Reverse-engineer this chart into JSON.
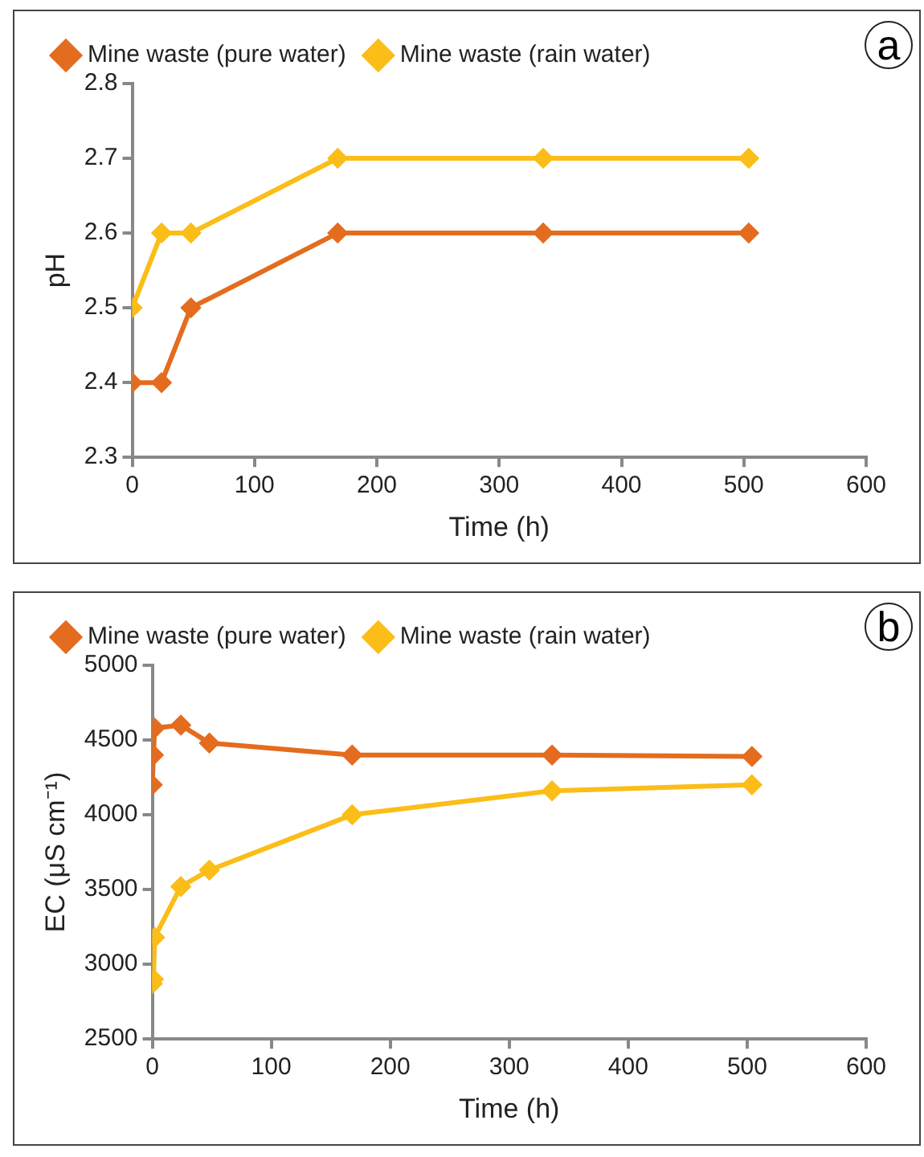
{
  "chart_data": [
    {
      "type": "line",
      "xlabel": "Time (h)",
      "ylabel": "pH",
      "x": [
        0,
        24,
        48,
        168,
        336,
        504
      ],
      "xlim": [
        0,
        600
      ],
      "xticks": [
        0,
        100,
        200,
        300,
        400,
        500,
        600
      ],
      "ylim": [
        2.3,
        2.8
      ],
      "yticks": [
        2.3,
        2.4,
        2.5,
        2.6,
        2.7,
        2.8
      ],
      "grid": false,
      "legend": "top",
      "marker": "diamond",
      "annotations": [
        "a"
      ],
      "series": [
        {
          "name": "Mine waste (pure water)",
          "color": "#e46c1e",
          "values": [
            2.4,
            2.4,
            2.5,
            2.6,
            2.6,
            2.6
          ]
        },
        {
          "name": "Mine waste (rain water)",
          "color": "#fbbd18",
          "values": [
            2.5,
            2.6,
            2.6,
            2.7,
            2.7,
            2.7
          ]
        }
      ]
    },
    {
      "type": "line",
      "xlabel": "Time (h)",
      "ylabel": "EC (μS cm⁻¹)",
      "x": [
        0,
        1,
        2,
        24,
        48,
        168,
        336,
        504
      ],
      "xlim": [
        0,
        600
      ],
      "xticks": [
        0,
        100,
        200,
        300,
        400,
        500,
        600
      ],
      "ylim": [
        2500,
        5000
      ],
      "yticks": [
        2500,
        3000,
        3500,
        4000,
        4500,
        5000
      ],
      "grid": false,
      "legend": "top",
      "marker": "diamond",
      "annotations": [
        "b"
      ],
      "series": [
        {
          "name": "Mine waste (pure water)",
          "color": "#e46c1e",
          "values": [
            4200,
            4400,
            4580,
            4600,
            4480,
            4400,
            4400,
            4390
          ]
        },
        {
          "name": "Mine waste (rain water)",
          "color": "#fbbd18",
          "values": [
            2870,
            2900,
            3180,
            3520,
            3630,
            4000,
            4160,
            4200
          ]
        }
      ]
    }
  ]
}
